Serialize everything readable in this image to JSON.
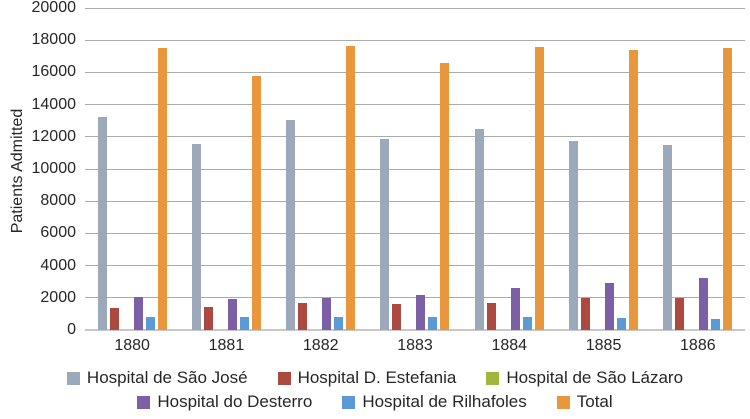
{
  "chart_data": {
    "type": "bar",
    "title": "",
    "xlabel": "",
    "ylabel": "Patients Admitted",
    "ylim": [
      0,
      20000
    ],
    "ytick_step": 2000,
    "yticks": [
      0,
      2000,
      4000,
      6000,
      8000,
      10000,
      12000,
      14000,
      16000,
      18000,
      20000
    ],
    "grid": "horizontal",
    "legend_position": "bottom",
    "categories": [
      "1880",
      "1881",
      "1882",
      "1883",
      "1884",
      "1885",
      "1886"
    ],
    "series": [
      {
        "name": "Hospital de São José",
        "color": "#9BA9BB",
        "values": [
          13200,
          11550,
          13050,
          11850,
          12500,
          11750,
          11500
        ]
      },
      {
        "name": "Hospital D. Estefania",
        "color": "#AC4A41",
        "values": [
          1350,
          1400,
          1650,
          1600,
          1650,
          2000,
          2000
        ]
      },
      {
        "name": "Hospital de São Lázaro",
        "color": "#A2B53F",
        "values": [
          0,
          0,
          0,
          0,
          0,
          0,
          0
        ]
      },
      {
        "name": "Hospital do Desterro",
        "color": "#7C60A5",
        "values": [
          2050,
          1900,
          2000,
          2200,
          2600,
          2900,
          3200
        ]
      },
      {
        "name": "Hospital de Rilhafoles",
        "color": "#5B9BD5",
        "values": [
          800,
          800,
          800,
          800,
          800,
          750,
          700
        ]
      },
      {
        "name": "Total",
        "color": "#E8973C",
        "values": [
          17500,
          15750,
          17650,
          16600,
          17600,
          17400,
          17500
        ]
      }
    ],
    "legend_rows": [
      [
        0,
        1,
        2
      ],
      [
        3,
        4,
        5
      ]
    ]
  },
  "colors": {
    "background": "#FFFFFF",
    "gridline": "#ABABAB",
    "axisline": "#C8C8C8",
    "text": "#262626"
  }
}
